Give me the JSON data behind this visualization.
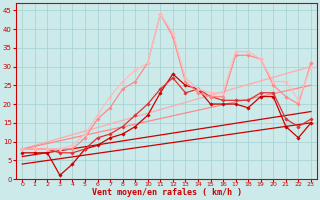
{
  "xlabel": "Vent moyen/en rafales ( km/h )",
  "xlim": [
    -0.5,
    23.5
  ],
  "ylim": [
    0,
    47
  ],
  "yticks": [
    0,
    5,
    10,
    15,
    20,
    25,
    30,
    35,
    40,
    45
  ],
  "xticks": [
    0,
    1,
    2,
    3,
    4,
    5,
    6,
    7,
    8,
    9,
    10,
    11,
    12,
    13,
    14,
    15,
    16,
    17,
    18,
    19,
    20,
    21,
    22,
    23
  ],
  "bg_color": "#cceaea",
  "grid_color": "#aad4d4",
  "lines": [
    {
      "x": [
        0,
        23
      ],
      "y": [
        4,
        15
      ],
      "color": "#cc0000",
      "lw": 0.9,
      "marker": null,
      "zorder": 2
    },
    {
      "x": [
        0,
        23
      ],
      "y": [
        6,
        18
      ],
      "color": "#cc0000",
      "lw": 0.9,
      "marker": null,
      "zorder": 2
    },
    {
      "x": [
        0,
        23
      ],
      "y": [
        8,
        30
      ],
      "color": "#ffaaaa",
      "lw": 0.9,
      "marker": null,
      "zorder": 2
    },
    {
      "x": [
        0,
        23
      ],
      "y": [
        8,
        25
      ],
      "color": "#ff8888",
      "lw": 0.9,
      "marker": null,
      "zorder": 2
    },
    {
      "x": [
        0,
        1,
        2,
        3,
        4,
        5,
        6,
        7,
        8,
        9,
        10,
        11,
        12,
        13,
        14,
        15,
        16,
        17,
        18,
        19,
        20,
        21,
        22,
        23
      ],
      "y": [
        7,
        7,
        7,
        1,
        4,
        8,
        9,
        11,
        12,
        14,
        17,
        23,
        28,
        25,
        24,
        20,
        20,
        20,
        19,
        22,
        22,
        14,
        11,
        15
      ],
      "color": "#cc0000",
      "lw": 0.9,
      "marker": "D",
      "ms": 1.8,
      "zorder": 3
    },
    {
      "x": [
        0,
        1,
        2,
        3,
        4,
        5,
        6,
        7,
        8,
        9,
        10,
        11,
        12,
        13,
        14,
        15,
        16,
        17,
        18,
        19,
        20,
        21,
        22,
        23
      ],
      "y": [
        8,
        8,
        8,
        7,
        7,
        8,
        11,
        12,
        14,
        17,
        20,
        24,
        27,
        23,
        24,
        22,
        21,
        21,
        21,
        23,
        23,
        16,
        14,
        16
      ],
      "color": "#dd3333",
      "lw": 0.9,
      "marker": "D",
      "ms": 1.8,
      "zorder": 3
    },
    {
      "x": [
        0,
        1,
        2,
        3,
        4,
        5,
        6,
        7,
        8,
        9,
        10,
        11,
        12,
        13,
        14,
        15,
        16,
        17,
        18,
        19,
        20,
        21,
        22,
        23
      ],
      "y": [
        8,
        8,
        8,
        8,
        8,
        11,
        16,
        19,
        24,
        26,
        31,
        44,
        38,
        26,
        23,
        22,
        22,
        33,
        33,
        32,
        25,
        22,
        20,
        31
      ],
      "color": "#ff8888",
      "lw": 0.9,
      "marker": "D",
      "ms": 1.8,
      "zorder": 3
    },
    {
      "x": [
        0,
        1,
        2,
        3,
        4,
        5,
        6,
        7,
        8,
        9,
        10,
        11,
        12,
        13,
        14,
        15,
        16,
        17,
        18,
        19,
        20,
        21,
        22,
        23
      ],
      "y": [
        8,
        8,
        8,
        8,
        9,
        12,
        17,
        22,
        26,
        29,
        31,
        44,
        39,
        27,
        24,
        23,
        23,
        34,
        34,
        32,
        26,
        26,
        21,
        30
      ],
      "color": "#ffbbbb",
      "lw": 0.9,
      "marker": "D",
      "ms": 1.8,
      "zorder": 3
    }
  ]
}
